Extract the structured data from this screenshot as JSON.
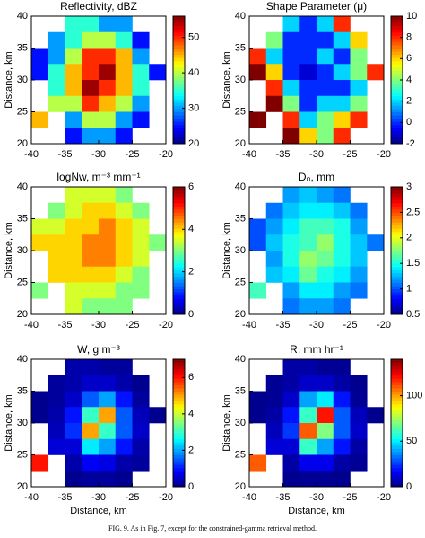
{
  "chart_data": [
    {
      "type": "heatmap",
      "title": "Reflectivity, dBZ",
      "ylabel": "Distance, km",
      "x": [
        -38.75,
        -36.25,
        -33.75,
        -31.25,
        -28.75,
        -26.25,
        -23.75,
        -21.25
      ],
      "y": [
        38.75,
        36.25,
        33.75,
        31.25,
        28.75,
        26.25,
        23.75,
        21.25
      ],
      "z": [
        [
          null,
          null,
          35,
          35,
          30,
          30,
          null,
          null
        ],
        [
          null,
          30,
          35,
          40,
          40,
          35,
          25,
          null
        ],
        [
          25,
          30,
          40,
          50,
          50,
          45,
          30,
          null
        ],
        [
          25,
          35,
          45,
          50,
          55,
          45,
          35,
          25
        ],
        [
          null,
          35,
          45,
          55,
          50,
          45,
          35,
          null
        ],
        [
          null,
          40,
          40,
          50,
          45,
          40,
          30,
          null
        ],
        [
          45,
          null,
          30,
          40,
          40,
          30,
          25,
          null
        ],
        [
          null,
          null,
          25,
          30,
          30,
          25,
          null,
          null
        ]
      ],
      "clim": [
        20,
        56
      ],
      "cticks": [
        20,
        30,
        40,
        50
      ],
      "xlim": [
        -40,
        -20
      ],
      "xticks": [
        -40,
        -35,
        -30,
        -25,
        -20
      ],
      "ylim": [
        20,
        40
      ],
      "yticks": [
        20,
        25,
        30,
        35,
        40
      ]
    },
    {
      "type": "heatmap",
      "title": "Shape Parameter (μ)",
      "ylabel": "Distance, km",
      "x": [
        -38.75,
        -36.25,
        -33.75,
        -31.25,
        -28.75,
        -26.25,
        -23.75,
        -21.25
      ],
      "y": [
        38.75,
        36.25,
        33.75,
        31.25,
        28.75,
        26.25,
        23.75,
        21.25
      ],
      "z": [
        [
          null,
          null,
          2,
          0,
          2,
          8,
          null,
          null
        ],
        [
          null,
          4,
          0,
          0,
          0,
          2,
          6,
          null
        ],
        [
          8,
          2,
          0,
          0,
          2,
          0,
          4,
          null
        ],
        [
          10,
          6,
          0,
          -1,
          0,
          2,
          4,
          8
        ],
        [
          null,
          8,
          2,
          0,
          0,
          0,
          2,
          null
        ],
        [
          null,
          10,
          4,
          0,
          2,
          2,
          4,
          null
        ],
        [
          10,
          null,
          8,
          2,
          4,
          6,
          8,
          null
        ],
        [
          null,
          null,
          10,
          6,
          4,
          8,
          null,
          null
        ]
      ],
      "clim": [
        -2,
        10
      ],
      "cticks": [
        -2,
        0,
        2,
        4,
        6,
        8,
        10
      ],
      "xlim": [
        -40,
        -20
      ],
      "xticks": [
        -40,
        -35,
        -30,
        -25,
        -20
      ],
      "ylim": [
        20,
        40
      ],
      "yticks": [
        20,
        25,
        30,
        35,
        40
      ]
    },
    {
      "type": "heatmap",
      "title": "logNw, m⁻³ mm⁻¹",
      "ylabel": "Distance, km",
      "x": [
        -38.75,
        -36.25,
        -33.75,
        -31.25,
        -28.75,
        -26.25,
        -23.75,
        -21.25
      ],
      "y": [
        38.75,
        36.25,
        33.75,
        31.25,
        28.75,
        26.25,
        23.75,
        21.25
      ],
      "z": [
        [
          null,
          null,
          3.5,
          3.5,
          3.5,
          3,
          null,
          null
        ],
        [
          null,
          3,
          3.5,
          4,
          4,
          3.5,
          3,
          null
        ],
        [
          3.5,
          3.5,
          4,
          4,
          4.5,
          4,
          3.5,
          null
        ],
        [
          4,
          4,
          4,
          4.5,
          4.5,
          4,
          3.5,
          3
        ],
        [
          null,
          4,
          4,
          4.5,
          4.5,
          4,
          3.5,
          null
        ],
        [
          null,
          4,
          4,
          4,
          4,
          3.5,
          3,
          null
        ],
        [
          3,
          null,
          3.5,
          3.5,
          3.5,
          3,
          3,
          null
        ],
        [
          null,
          null,
          3.5,
          3,
          3,
          3,
          null,
          null
        ]
      ],
      "clim": [
        0,
        6
      ],
      "cticks": [
        0,
        2,
        4,
        6
      ],
      "xlim": [
        -40,
        -20
      ],
      "xticks": [
        -40,
        -35,
        -30,
        -25,
        -20
      ],
      "ylim": [
        20,
        40
      ],
      "yticks": [
        20,
        25,
        30,
        35,
        40
      ]
    },
    {
      "type": "heatmap",
      "title": "D₀, mm",
      "ylabel": "Distance, km",
      "x": [
        -38.75,
        -36.25,
        -33.75,
        -31.25,
        -28.75,
        -26.25,
        -23.75,
        -21.25
      ],
      "y": [
        38.75,
        36.25,
        33.75,
        31.25,
        28.75,
        26.25,
        23.75,
        21.25
      ],
      "z": [
        [
          null,
          null,
          1.2,
          1.3,
          1.2,
          1.1,
          null,
          null
        ],
        [
          null,
          1.1,
          1.3,
          1.4,
          1.4,
          1.3,
          1.1,
          null
        ],
        [
          1,
          1.2,
          1.4,
          1.6,
          1.6,
          1.5,
          1.2,
          null
        ],
        [
          1,
          1.3,
          1.5,
          1.6,
          1.8,
          1.5,
          1.3,
          1.1
        ],
        [
          null,
          1.2,
          1.5,
          1.8,
          1.7,
          1.5,
          1.3,
          null
        ],
        [
          null,
          1.3,
          1.4,
          1.7,
          1.5,
          1.4,
          1.2,
          null
        ],
        [
          1.6,
          null,
          1.2,
          1.4,
          1.4,
          1.2,
          1.1,
          null
        ],
        [
          null,
          null,
          1.1,
          1.2,
          1.2,
          1.1,
          null,
          null
        ]
      ],
      "clim": [
        0.5,
        3
      ],
      "cticks": [
        0.5,
        1,
        1.5,
        2,
        2.5,
        3
      ],
      "xlim": [
        -40,
        -20
      ],
      "xticks": [
        -40,
        -35,
        -30,
        -25,
        -20
      ],
      "ylim": [
        20,
        40
      ],
      "yticks": [
        20,
        25,
        30,
        35,
        40
      ]
    },
    {
      "type": "heatmap",
      "title": "W, g m⁻³",
      "ylabel": "Distance, km",
      "xlabel": "Distance, km",
      "x": [
        -38.75,
        -36.25,
        -33.75,
        -31.25,
        -28.75,
        -26.25,
        -23.75,
        -21.25
      ],
      "y": [
        38.75,
        36.25,
        33.75,
        31.25,
        28.75,
        26.25,
        23.75,
        21.25
      ],
      "z": [
        [
          null,
          null,
          0.3,
          0.3,
          0.2,
          0.2,
          null,
          null
        ],
        [
          null,
          0.2,
          0.3,
          0.5,
          0.5,
          0.3,
          0.1,
          null
        ],
        [
          0.1,
          0.2,
          0.5,
          1.5,
          2,
          1,
          0.2,
          null
        ],
        [
          0.1,
          0.3,
          1,
          3,
          5,
          1.5,
          0.4,
          0.1
        ],
        [
          null,
          0.4,
          1.2,
          5,
          3,
          1.5,
          0.5,
          null
        ],
        [
          null,
          0.6,
          0.6,
          2.5,
          2,
          1,
          0.3,
          null
        ],
        [
          6,
          null,
          0.3,
          0.8,
          0.7,
          0.3,
          0.2,
          null
        ],
        [
          null,
          null,
          0.1,
          0.2,
          0.2,
          0.1,
          null,
          null
        ]
      ],
      "clim": [
        0,
        7
      ],
      "cticks": [
        0,
        2,
        4,
        6
      ],
      "xlim": [
        -40,
        -20
      ],
      "xticks": [
        -40,
        -35,
        -30,
        -25,
        -20
      ],
      "ylim": [
        20,
        40
      ],
      "yticks": [
        20,
        25,
        30,
        35,
        40
      ]
    },
    {
      "type": "heatmap",
      "title": "R, mm hr⁻¹",
      "ylabel": "Distance, km",
      "xlabel": "Distance, km",
      "x": [
        -38.75,
        -36.25,
        -33.75,
        -31.25,
        -28.75,
        -26.25,
        -23.75,
        -21.25
      ],
      "y": [
        38.75,
        36.25,
        33.75,
        31.25,
        28.75,
        26.25,
        23.75,
        21.25
      ],
      "z": [
        [
          null,
          null,
          5,
          5,
          3,
          3,
          null,
          null
        ],
        [
          null,
          3,
          5,
          10,
          10,
          5,
          2,
          null
        ],
        [
          2,
          3,
          10,
          40,
          50,
          20,
          3,
          null
        ],
        [
          2,
          5,
          20,
          60,
          120,
          30,
          8,
          2
        ],
        [
          null,
          8,
          25,
          110,
          70,
          30,
          10,
          null
        ],
        [
          null,
          12,
          12,
          60,
          40,
          20,
          5,
          null
        ],
        [
          110,
          null,
          5,
          15,
          15,
          5,
          3,
          null
        ],
        [
          null,
          null,
          2,
          3,
          3,
          2,
          null,
          null
        ]
      ],
      "clim": [
        0,
        140
      ],
      "cticks": [
        0,
        50,
        100
      ],
      "xlim": [
        -40,
        -20
      ],
      "xticks": [
        -40,
        -35,
        -30,
        -25,
        -20
      ],
      "ylim": [
        20,
        40
      ],
      "yticks": [
        20,
        25,
        30,
        35,
        40
      ]
    }
  ],
  "caption": "FIG. 9. As in Fig. 7, except for the constrained-gamma retrieval method."
}
